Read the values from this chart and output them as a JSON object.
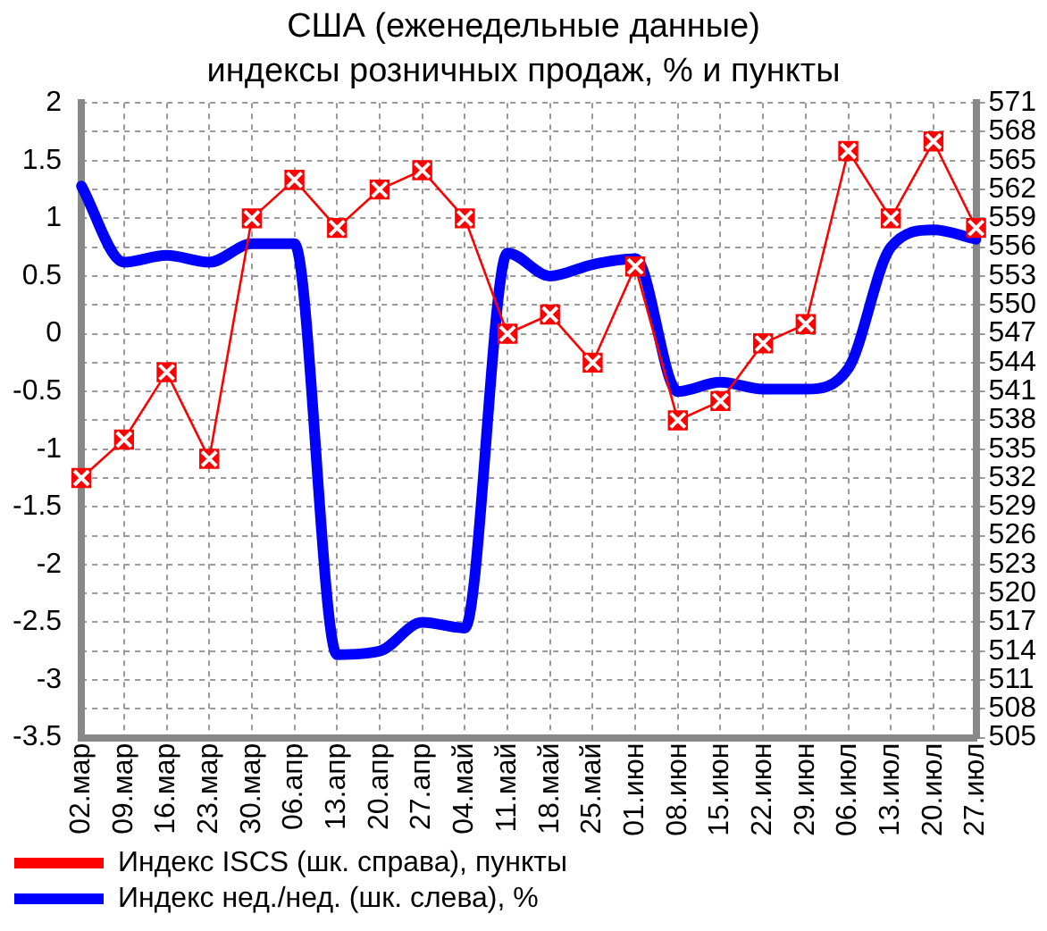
{
  "chart_data": {
    "type": "line",
    "title": "США (еженедельные данные)",
    "subtitle": "индексы розничных продаж, % и пункты",
    "categories": [
      "02.мар",
      "09.мар",
      "16.мар",
      "23.мар",
      "30.мар",
      "06.апр",
      "13.апр",
      "20.апр",
      "27.апр",
      "04.май",
      "11.май",
      "18.май",
      "25.май",
      "01.июн",
      "08.июн",
      "15.июн",
      "22.июн",
      "29.июн",
      "06.июл",
      "13.июл",
      "20.июл",
      "27.июл"
    ],
    "series": [
      {
        "name": "Индекс ISCS (шк. справа), пункты",
        "color": "#ff0000",
        "axis": "y2",
        "marker": "square",
        "values": [
          532,
          536,
          543,
          534,
          559,
          563,
          558,
          562,
          564,
          559,
          547,
          549,
          544,
          554,
          538,
          540,
          546,
          548,
          566,
          559,
          567,
          558
        ]
      },
      {
        "name": "Индекс нед./нед. (шк. слева), %",
        "color": "#0000ff",
        "marker": "none",
        "values": [
          1.28,
          0.62,
          0.68,
          0.62,
          0.78,
          0.78,
          -2.78,
          -2.75,
          -2.5,
          -2.55,
          0.7,
          0.5,
          0.6,
          0.65,
          -0.5,
          -0.42,
          -0.48,
          -0.48,
          -0.3,
          0.75,
          0.9,
          0.82
        ]
      }
    ],
    "ylim": [
      -3.5,
      2
    ],
    "yticks": [
      -3.5,
      -3,
      -2.5,
      -2,
      -1.5,
      -1,
      -0.5,
      0,
      0.5,
      1,
      1.5,
      2
    ],
    "y2lim": [
      505,
      571
    ],
    "y2ticks": [
      505,
      508,
      511,
      514,
      517,
      520,
      523,
      526,
      529,
      532,
      535,
      538,
      541,
      544,
      547,
      550,
      553,
      556,
      559,
      562,
      565,
      568,
      571
    ],
    "grid": true,
    "legend": "bottom"
  }
}
